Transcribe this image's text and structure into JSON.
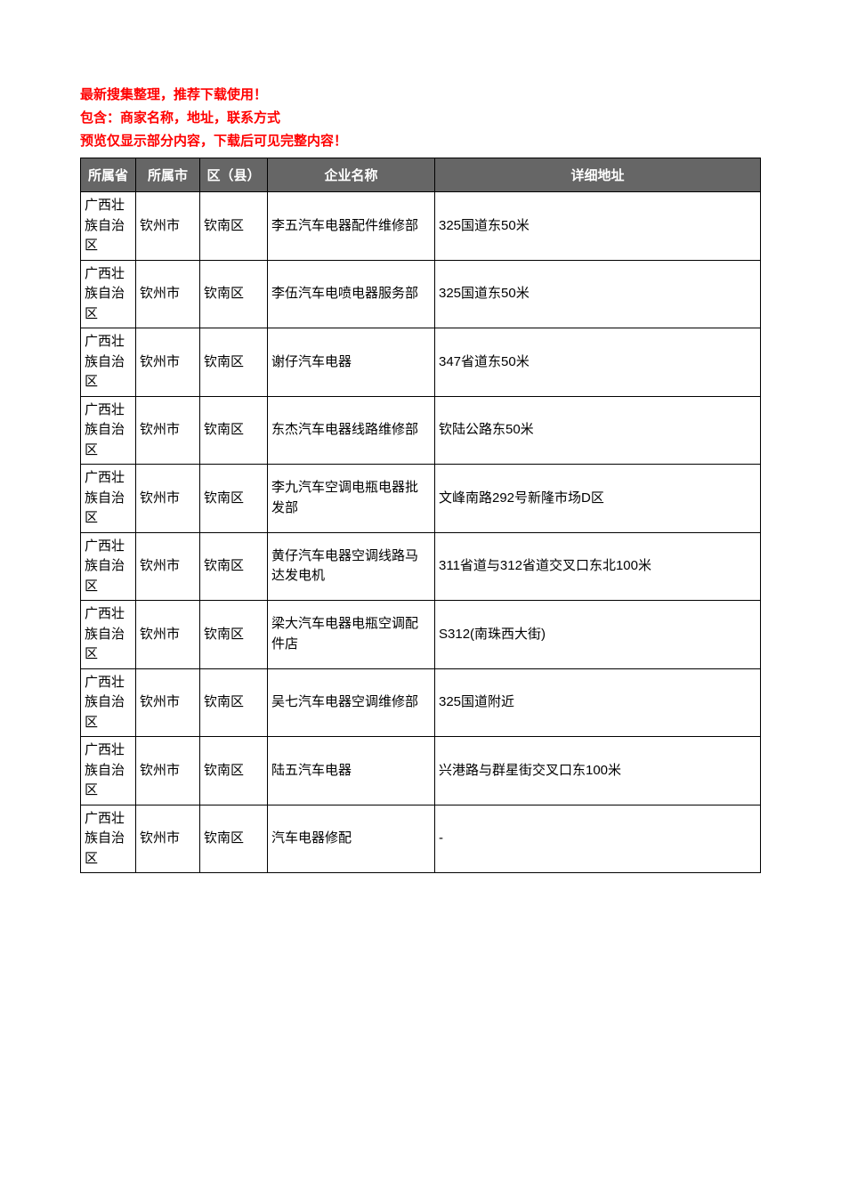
{
  "intro": {
    "line1": "最新搜集整理，推荐下载使用！",
    "line2": "包含：商家名称，地址，联系方式",
    "line3": "预览仅显示部分内容，下载后可见完整内容！"
  },
  "table": {
    "columns": [
      {
        "key": "province",
        "label": "所属省",
        "class": "col-province"
      },
      {
        "key": "city",
        "label": "所属市",
        "class": "col-city"
      },
      {
        "key": "district",
        "label": "区（县）",
        "class": "col-district"
      },
      {
        "key": "enterprise",
        "label": "企业名称",
        "class": "col-enterprise"
      },
      {
        "key": "address",
        "label": "详细地址",
        "class": "col-address"
      }
    ],
    "rows": [
      {
        "province": "广西壮族自治区",
        "city": "钦州市",
        "district": "钦南区",
        "enterprise": "李五汽车电器配件维修部",
        "address": "325国道东50米"
      },
      {
        "province": "广西壮族自治区",
        "city": "钦州市",
        "district": "钦南区",
        "enterprise": "李伍汽车电喷电器服务部",
        "address": "325国道东50米"
      },
      {
        "province": "广西壮族自治区",
        "city": "钦州市",
        "district": "钦南区",
        "enterprise": "谢仔汽车电器",
        "address": "347省道东50米"
      },
      {
        "province": "广西壮族自治区",
        "city": "钦州市",
        "district": "钦南区",
        "enterprise": "东杰汽车电器线路维修部",
        "address": "钦陆公路东50米"
      },
      {
        "province": "广西壮族自治区",
        "city": "钦州市",
        "district": "钦南区",
        "enterprise": "李九汽车空调电瓶电器批发部",
        "address": "文峰南路292号新隆市场D区"
      },
      {
        "province": "广西壮族自治区",
        "city": "钦州市",
        "district": "钦南区",
        "enterprise": "黄仔汽车电器空调线路马达发电机",
        "address": "311省道与312省道交叉口东北100米"
      },
      {
        "province": "广西壮族自治区",
        "city": "钦州市",
        "district": "钦南区",
        "enterprise": "梁大汽车电器电瓶空调配件店",
        "address": "S312(南珠西大街)"
      },
      {
        "province": "广西壮族自治区",
        "city": "钦州市",
        "district": "钦南区",
        "enterprise": "吴七汽车电器空调维修部",
        "address": "325国道附近"
      },
      {
        "province": "广西壮族自治区",
        "city": "钦州市",
        "district": "钦南区",
        "enterprise": "陆五汽车电器",
        "address": "兴港路与群星街交叉口东100米"
      },
      {
        "province": "广西壮族自治区",
        "city": "钦州市",
        "district": "钦南区",
        "enterprise": "汽车电器修配",
        "address": "-"
      }
    ]
  },
  "styles": {
    "intro_color": "#ff0000",
    "intro_fontsize": 15,
    "header_bg": "#666666",
    "header_fg": "#ffffff",
    "cell_fg": "#000000",
    "border_color": "#000000",
    "cell_fontsize": 15,
    "body_bg": "#ffffff"
  }
}
